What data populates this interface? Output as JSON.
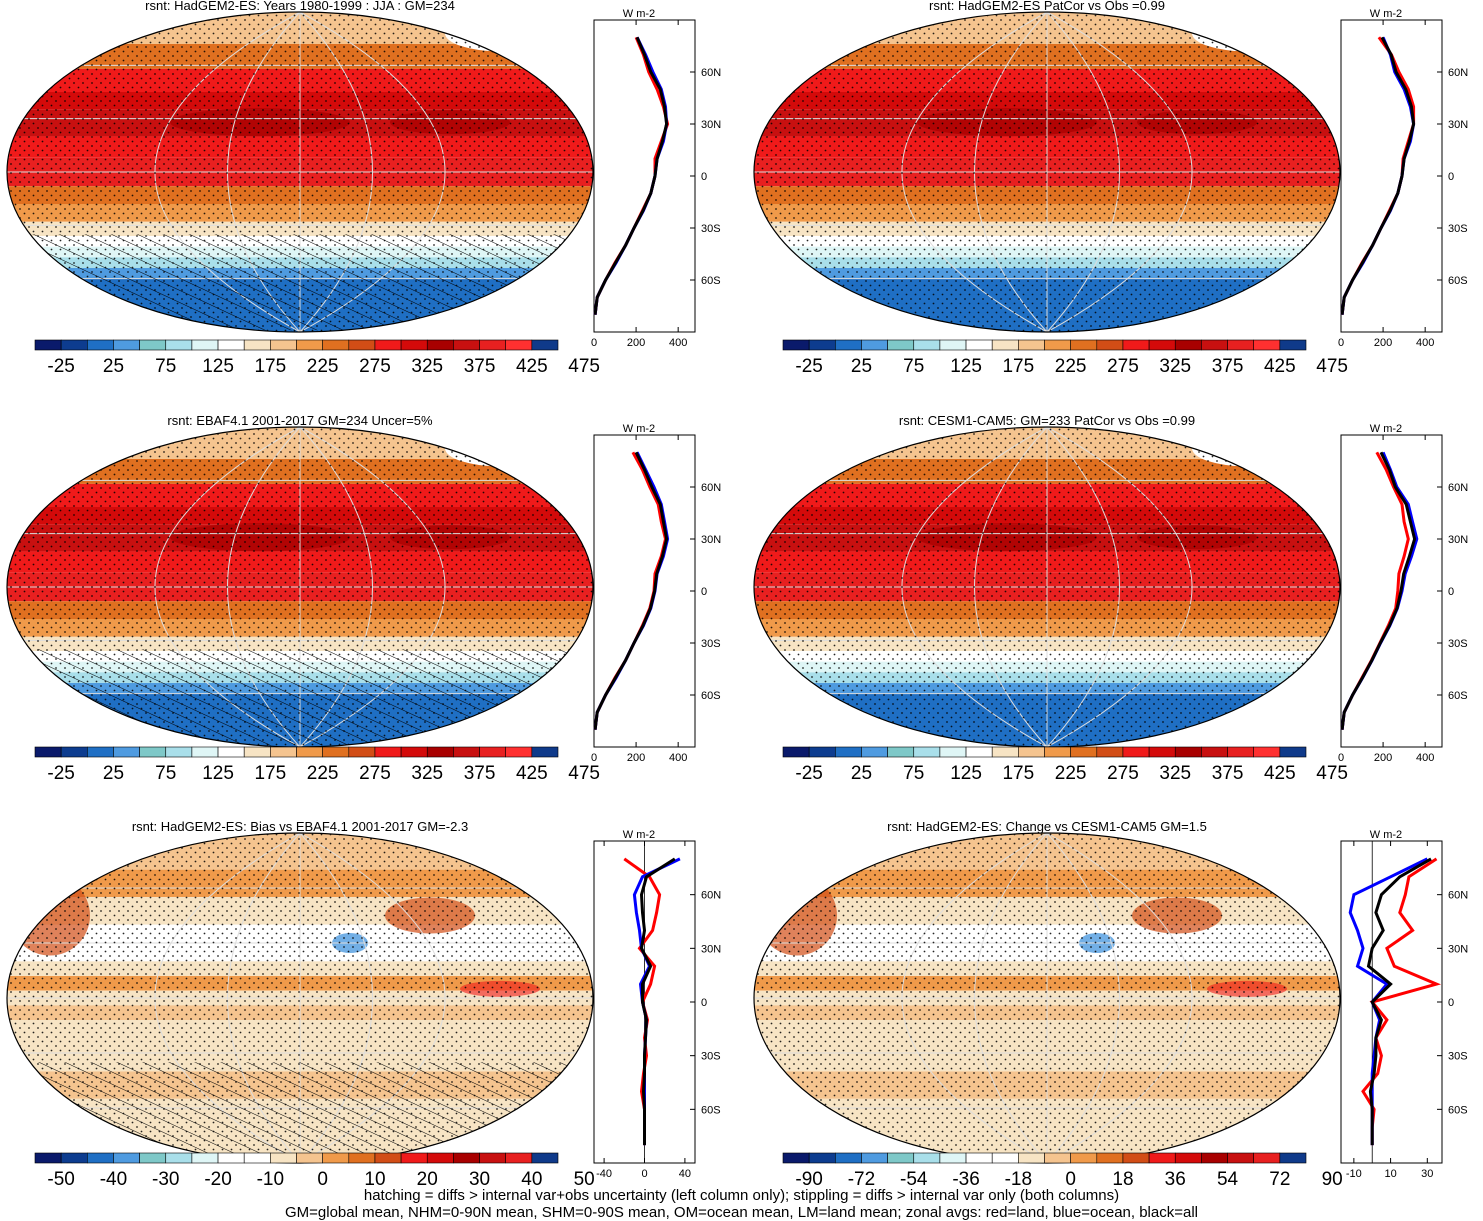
{
  "footnote_lines": [
    "hatching = diffs > internal var+obs uncertainty (left column only); stippling = diffs > internal var only (both columns)",
    "GM=global mean, NHM=0-90N mean, SHM=0-90S mean, OM=ocean mean, LM=land mean; zonal avgs: red=land, blue=ocean, black=all"
  ],
  "chart_data": [
    {
      "type": "heatmap",
      "title": "rsnt: HadGEM2-ES: Years 1980-1999 : JJA : GM=234",
      "colorbar_labels": [
        "-25",
        "25",
        "75",
        "125",
        "175",
        "225",
        "275",
        "325",
        "375",
        "425",
        "475"
      ],
      "palette": "absolute",
      "hatching": true,
      "zonal_profile": {
        "units": "W m-2",
        "xticks": [
          "0",
          "200",
          "400"
        ],
        "xlim": [
          0,
          480
        ],
        "yticks": [
          "60N",
          "30N",
          "0",
          "30S",
          "60S"
        ],
        "ylim": [
          -90,
          90
        ],
        "series": [
          {
            "name": "land",
            "color": "#ff0000",
            "lat": [
              80,
              70,
              60,
              50,
              40,
              30,
              20,
              10,
              0,
              -10,
              -20,
              -30,
              -40,
              -50,
              -60,
              -70,
              -80
            ],
            "values": [
              200,
              235,
              260,
              300,
              330,
              350,
              320,
              290,
              290,
              270,
              230,
              190,
              150,
              100,
              55,
              15,
              5
            ]
          },
          {
            "name": "ocean",
            "color": "#0000ff",
            "lat": [
              80,
              70,
              60,
              50,
              40,
              30,
              20,
              10,
              0,
              -10,
              -20,
              -30,
              -40,
              -50,
              -60,
              -70,
              -80
            ],
            "values": [
              205,
              245,
              280,
              320,
              340,
              345,
              330,
              300,
              290,
              270,
              235,
              190,
              150,
              105,
              55,
              15,
              5
            ]
          },
          {
            "name": "all",
            "color": "#000000",
            "lat": [
              80,
              70,
              60,
              50,
              40,
              30,
              20,
              10,
              0,
              -10,
              -20,
              -30,
              -40,
              -50,
              -60,
              -70,
              -80
            ],
            "values": [
              205,
              240,
              270,
              315,
              335,
              345,
              325,
              300,
              290,
              270,
              233,
              190,
              150,
              102,
              55,
              15,
              5
            ]
          }
        ]
      }
    },
    {
      "type": "heatmap",
      "title": "rsnt: HadGEM2-ES PatCor vs Obs =0.99",
      "colorbar_labels": [
        "-25",
        "25",
        "75",
        "125",
        "175",
        "225",
        "275",
        "325",
        "375",
        "425",
        "475"
      ],
      "palette": "absolute",
      "hatching": false,
      "zonal_profile": {
        "units": "W m-2",
        "xticks": [
          "0",
          "200",
          "400"
        ],
        "xlim": [
          0,
          480
        ],
        "yticks": [
          "60N",
          "30N",
          "0",
          "30S",
          "60S"
        ],
        "ylim": [
          -90,
          90
        ],
        "series": [
          {
            "name": "land",
            "color": "#ff0000",
            "lat": [
              80,
              70,
              60,
              50,
              40,
              30,
              20,
              10,
              0,
              -10,
              -20,
              -30,
              -40,
              -50,
              -60,
              -70,
              -80
            ],
            "values": [
              180,
              240,
              275,
              320,
              345,
              345,
              320,
              295,
              290,
              270,
              230,
              190,
              150,
              100,
              55,
              15,
              5
            ]
          },
          {
            "name": "ocean",
            "color": "#0000ff",
            "lat": [
              80,
              70,
              60,
              50,
              40,
              30,
              20,
              10,
              0,
              -10,
              -20,
              -30,
              -40,
              -50,
              -60,
              -70,
              -80
            ],
            "values": [
              200,
              235,
              255,
              300,
              330,
              345,
              330,
              300,
              290,
              270,
              235,
              190,
              150,
              105,
              55,
              15,
              5
            ]
          },
          {
            "name": "all",
            "color": "#000000",
            "lat": [
              80,
              70,
              60,
              50,
              40,
              30,
              20,
              10,
              0,
              -10,
              -20,
              -30,
              -40,
              -50,
              -60,
              -70,
              -80
            ],
            "values": [
              195,
              238,
              262,
              308,
              335,
              345,
              325,
              300,
              290,
              270,
              233,
              190,
              150,
              102,
              55,
              15,
              5
            ]
          }
        ]
      }
    },
    {
      "type": "heatmap",
      "title": "rsnt: EBAF4.1 2001-2017 GM=234 Uncer=5%",
      "colorbar_labels": [
        "-25",
        "25",
        "75",
        "125",
        "175",
        "225",
        "275",
        "325",
        "375",
        "425",
        "475"
      ],
      "palette": "absolute",
      "hatching": true,
      "zonal_profile": {
        "units": "W m-2",
        "xticks": [
          "0",
          "200",
          "400"
        ],
        "xlim": [
          0,
          480
        ],
        "yticks": [
          "60N",
          "30N",
          "0",
          "30S",
          "60S"
        ],
        "ylim": [
          -90,
          90
        ],
        "series": [
          {
            "name": "land",
            "color": "#ff0000",
            "lat": [
              80,
              70,
              60,
              50,
              40,
              30,
              20,
              10,
              0,
              -10,
              -20,
              -30,
              -40,
              -50,
              -60,
              -70,
              -80
            ],
            "values": [
              185,
              230,
              265,
              305,
              320,
              340,
              320,
              290,
              285,
              265,
              230,
              190,
              150,
              100,
              55,
              15,
              5
            ]
          },
          {
            "name": "ocean",
            "color": "#0000ff",
            "lat": [
              80,
              70,
              60,
              50,
              40,
              30,
              20,
              10,
              0,
              -10,
              -20,
              -30,
              -40,
              -50,
              -60,
              -70,
              -80
            ],
            "values": [
              205,
              245,
              285,
              320,
              335,
              350,
              330,
              300,
              290,
              270,
              235,
              190,
              150,
              105,
              55,
              15,
              5
            ]
          },
          {
            "name": "all",
            "color": "#000000",
            "lat": [
              80,
              70,
              60,
              50,
              40,
              30,
              20,
              10,
              0,
              -10,
              -20,
              -30,
              -40,
              -50,
              -60,
              -70,
              -80
            ],
            "values": [
              200,
              240,
              275,
              315,
              330,
              345,
              325,
              298,
              288,
              268,
              233,
              190,
              150,
              102,
              55,
              15,
              5
            ]
          }
        ]
      }
    },
    {
      "type": "heatmap",
      "title": "rsnt: CESM1-CAM5: GM=233 PatCor vs Obs =0.99",
      "colorbar_labels": [
        "-25",
        "25",
        "75",
        "125",
        "175",
        "225",
        "275",
        "325",
        "375",
        "425",
        "475"
      ],
      "palette": "absolute",
      "hatching": false,
      "zonal_profile": {
        "units": "W m-2",
        "xticks": [
          "0",
          "200",
          "400"
        ],
        "xlim": [
          0,
          480
        ],
        "yticks": [
          "60N",
          "30N",
          "0",
          "30S",
          "60S"
        ],
        "ylim": [
          -90,
          90
        ],
        "series": [
          {
            "name": "land",
            "color": "#ff0000",
            "lat": [
              80,
              70,
              60,
              50,
              40,
              30,
              20,
              10,
              0,
              -10,
              -20,
              -30,
              -40,
              -50,
              -60,
              -70,
              -80
            ],
            "values": [
              170,
              215,
              250,
              290,
              300,
              320,
              300,
              275,
              270,
              260,
              225,
              185,
              145,
              100,
              55,
              15,
              5
            ]
          },
          {
            "name": "ocean",
            "color": "#0000ff",
            "lat": [
              80,
              70,
              60,
              50,
              40,
              30,
              20,
              10,
              0,
              -10,
              -20,
              -30,
              -40,
              -50,
              -60,
              -70,
              -80
            ],
            "values": [
              200,
              235,
              265,
              320,
              340,
              360,
              335,
              305,
              290,
              268,
              232,
              188,
              148,
              103,
              55,
              15,
              5
            ]
          },
          {
            "name": "all",
            "color": "#000000",
            "lat": [
              80,
              70,
              60,
              50,
              40,
              30,
              20,
              10,
              0,
              -10,
              -20,
              -30,
              -40,
              -50,
              -60,
              -70,
              -80
            ],
            "values": [
              190,
              230,
              258,
              310,
              330,
              350,
              325,
              298,
              285,
              266,
              230,
              187,
              147,
              102,
              55,
              15,
              5
            ]
          }
        ]
      }
    },
    {
      "type": "heatmap",
      "title": "rsnt: HadGEM2-ES: Bias vs EBAF4.1 2001-2017 GM=-2.3",
      "colorbar_labels": [
        "-50",
        "-40",
        "-30",
        "-20",
        "-10",
        "0",
        "10",
        "20",
        "30",
        "40",
        "50"
      ],
      "palette": "diff",
      "hatching": true,
      "zonal_profile": {
        "units": "W m-2",
        "xticks": [
          "-40",
          "0",
          "40"
        ],
        "xlim": [
          -50,
          50
        ],
        "yticks": [
          "60N",
          "30N",
          "0",
          "30S",
          "60S"
        ],
        "ylim": [
          -90,
          90
        ],
        "series": [
          {
            "name": "land",
            "color": "#ff0000",
            "lat": [
              80,
              70,
              60,
              50,
              40,
              30,
              20,
              10,
              0,
              -10,
              -20,
              -30,
              -40,
              -50,
              -60,
              -70,
              -80
            ],
            "values": [
              -20,
              5,
              15,
              12,
              8,
              -5,
              10,
              6,
              -2,
              3,
              0,
              2,
              -1,
              -3,
              0,
              0,
              0
            ]
          },
          {
            "name": "ocean",
            "color": "#0000ff",
            "lat": [
              80,
              70,
              60,
              50,
              40,
              30,
              20,
              10,
              0,
              -10,
              -20,
              -30,
              -40,
              -50,
              -60,
              -70,
              -80
            ],
            "values": [
              35,
              -2,
              -10,
              -8,
              -5,
              -3,
              5,
              -4,
              -2,
              2,
              1,
              0,
              0,
              0,
              0,
              0,
              0
            ]
          },
          {
            "name": "all",
            "color": "#000000",
            "lat": [
              80,
              70,
              60,
              50,
              40,
              30,
              20,
              10,
              0,
              -10,
              -20,
              -30,
              -40,
              -50,
              -60,
              -70,
              -80
            ],
            "values": [
              30,
              2,
              -3,
              -2,
              0,
              -3,
              6,
              -2,
              -2,
              2,
              1,
              0,
              0,
              -1,
              0,
              0,
              0
            ]
          }
        ]
      }
    },
    {
      "type": "heatmap",
      "title": "rsnt: HadGEM2-ES: Change vs CESM1-CAM5 GM=1.5",
      "colorbar_labels": [
        "-90",
        "-72",
        "-54",
        "-36",
        "-18",
        "0",
        "18",
        "36",
        "54",
        "72",
        "90"
      ],
      "palette": "diff",
      "hatching": false,
      "zonal_profile": {
        "units": "W m-2",
        "xticks": [
          "-10",
          "10",
          "30"
        ],
        "xlim": [
          -17,
          38
        ],
        "yticks": [
          "60N",
          "30N",
          "0",
          "30S",
          "60S"
        ],
        "ylim": [
          -90,
          90
        ],
        "series": [
          {
            "name": "land",
            "color": "#ff0000",
            "lat": [
              80,
              70,
              60,
              50,
              40,
              30,
              20,
              10,
              0,
              -10,
              -20,
              -30,
              -40,
              -50,
              -60,
              -70,
              -80
            ],
            "values": [
              35,
              20,
              18,
              15,
              22,
              8,
              12,
              35,
              0,
              8,
              2,
              5,
              3,
              -5,
              1,
              0,
              0
            ]
          },
          {
            "name": "ocean",
            "color": "#0000ff",
            "lat": [
              80,
              70,
              60,
              50,
              40,
              30,
              20,
              10,
              0,
              -10,
              -20,
              -30,
              -40,
              -50,
              -60,
              -70,
              -80
            ],
            "values": [
              30,
              10,
              -10,
              -12,
              -8,
              -5,
              -8,
              8,
              0,
              4,
              2,
              1,
              0,
              0,
              0,
              0,
              0
            ]
          },
          {
            "name": "all",
            "color": "#000000",
            "lat": [
              80,
              70,
              60,
              50,
              40,
              30,
              20,
              10,
              0,
              -10,
              -20,
              -30,
              -40,
              -50,
              -60,
              -70,
              -80
            ],
            "values": [
              32,
              15,
              5,
              2,
              6,
              0,
              -2,
              10,
              0,
              5,
              2,
              2,
              1,
              -1,
              0,
              0,
              0
            ]
          }
        ]
      }
    }
  ]
}
